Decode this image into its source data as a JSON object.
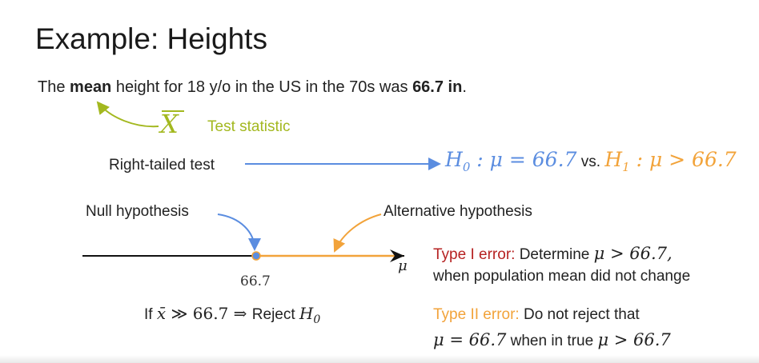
{
  "title": "Example: Heights",
  "intro": {
    "part1": "The ",
    "mean": "mean",
    "part2": "  height for 18 y/o in the US in the 70s was ",
    "value": "66.7 in",
    "end": "."
  },
  "test_statistic": {
    "symbol": "X",
    "label": "Test statistic"
  },
  "right_tailed": {
    "label": "Right-tailed test"
  },
  "hypotheses": {
    "h0": "H",
    "h0_sub": "0",
    "h0_rest": " : μ = 66.7",
    "vs": " vs. ",
    "h1": "H",
    "h1_sub": "1",
    "h1_rest": " : μ > 66.7"
  },
  "labels": {
    "null": "Null hypothesis",
    "alternative": "Alternative hypothesis"
  },
  "axis": {
    "tick": "66.7",
    "variable": "μ"
  },
  "decision": {
    "prefix": "If ",
    "xbar": "x̄",
    "cond": " ≫ 66.7 ⇒ ",
    "reject": " Reject ",
    "h": "H",
    "h_sub": "0"
  },
  "type1": {
    "title": "Type I error:",
    "text1": " Determine ",
    "math1": "μ > 66.7,",
    "line2": "when population mean did not change"
  },
  "type2": {
    "title": "Type II error:",
    "text1": " Do not reject that",
    "math1": "μ = 66.7",
    "text2": " when in true ",
    "math2": "μ > 66.7"
  },
  "colors": {
    "null_blue": "#5b8de0",
    "alt_orange": "#f2a33a",
    "stat_green": "#a3b81f",
    "type1_red": "#b62222"
  }
}
